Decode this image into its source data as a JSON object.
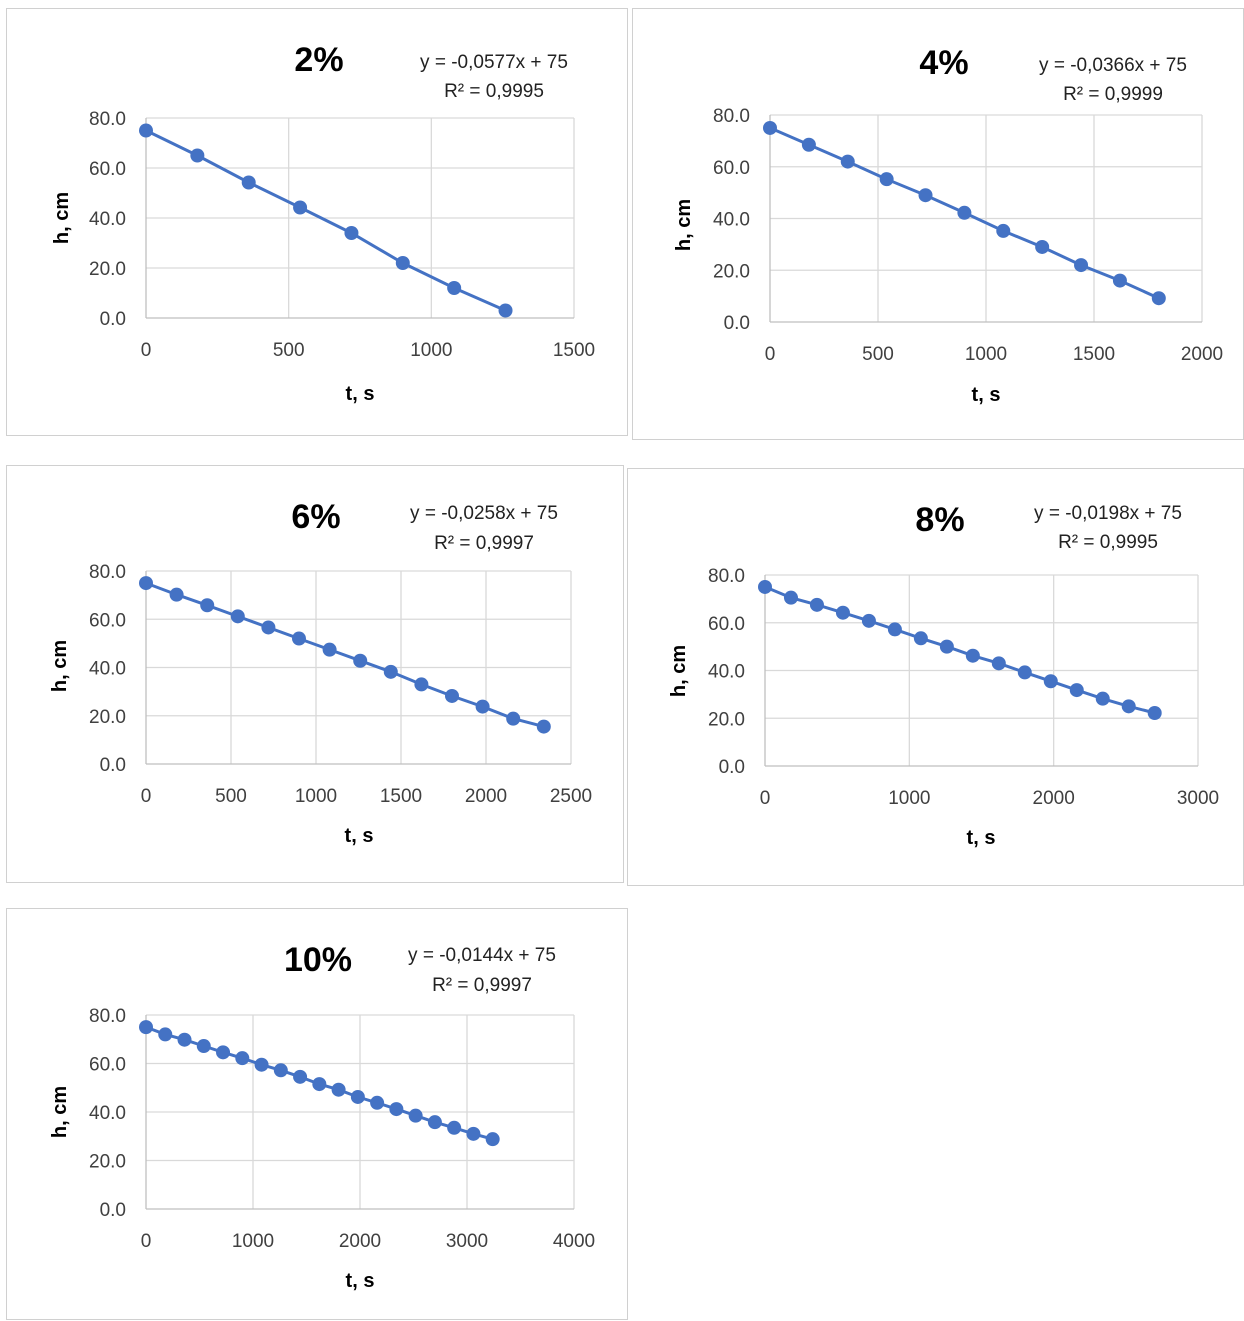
{
  "chart_data": [
    {
      "type": "scatter",
      "title": "2%",
      "equation": "y = -0,0577x + 75",
      "r2": "R² = 0,9995",
      "xlabel": "t, s",
      "ylabel": "h, cm",
      "xlim": [
        0,
        1500
      ],
      "ylim": [
        0,
        80
      ],
      "xticks": [
        "0",
        "500",
        "1000",
        "1500"
      ],
      "yticks": [
        "0.0",
        "20.0",
        "40.0",
        "60.0",
        "80.0"
      ],
      "series_color": "#4472c4",
      "x": [
        0,
        180,
        360,
        540,
        720,
        900,
        1080,
        1260
      ],
      "y": [
        75,
        65,
        54.2,
        44.2,
        34,
        22,
        12,
        3
      ]
    },
    {
      "type": "scatter",
      "title": "4%",
      "equation": "y = -0,0366x + 75",
      "r2": "R² = 0,9999",
      "xlabel": "t, s",
      "ylabel": "h, cm",
      "xlim": [
        0,
        2000
      ],
      "ylim": [
        0,
        80
      ],
      "xticks": [
        "0",
        "500",
        "1000",
        "1500",
        "2000"
      ],
      "yticks": [
        "0.0",
        "20.0",
        "40.0",
        "60.0",
        "80.0"
      ],
      "series_color": "#4472c4",
      "x": [
        0,
        180,
        360,
        540,
        720,
        900,
        1080,
        1260,
        1440,
        1620,
        1800
      ],
      "y": [
        75,
        68.5,
        62,
        55.2,
        49,
        42.2,
        35.2,
        29,
        22,
        16,
        9.2
      ]
    },
    {
      "type": "scatter",
      "title": "6%",
      "equation": "y = -0,0258x + 75",
      "r2": "R² = 0,9997",
      "xlabel": "t, s",
      "ylabel": "h, cm",
      "xlim": [
        0,
        2500
      ],
      "ylim": [
        0,
        80
      ],
      "xticks": [
        "0",
        "500",
        "1000",
        "1500",
        "2000",
        "2500"
      ],
      "yticks": [
        "0.0",
        "20.0",
        "40.0",
        "60.0",
        "80.0"
      ],
      "series_color": "#4472c4",
      "x": [
        0,
        180,
        360,
        540,
        720,
        900,
        1080,
        1260,
        1440,
        1620,
        1800,
        1980,
        2160,
        2340
      ],
      "y": [
        75,
        70.2,
        65.8,
        61.2,
        56.6,
        52,
        47.4,
        42.8,
        38.2,
        33,
        28.2,
        23.8,
        18.8,
        15.5
      ]
    },
    {
      "type": "scatter",
      "title": "8%",
      "equation": "y = -0,0198x + 75",
      "r2": "R² = 0,9995",
      "xlabel": "t, s",
      "ylabel": "h, cm",
      "xlim": [
        0,
        3000
      ],
      "ylim": [
        0,
        80
      ],
      "xticks": [
        "0",
        "1000",
        "2000",
        "3000"
      ],
      "yticks": [
        "0.0",
        "20.0",
        "40.0",
        "60.0",
        "80.0"
      ],
      "series_color": "#4472c4",
      "x": [
        0,
        180,
        360,
        540,
        720,
        900,
        1080,
        1260,
        1440,
        1620,
        1800,
        1980,
        2160,
        2340,
        2520,
        2700
      ],
      "y": [
        75,
        70.5,
        67.5,
        64.2,
        60.8,
        57.2,
        53.5,
        50,
        46.2,
        43,
        39.2,
        35.5,
        31.8,
        28.2,
        25,
        22.2
      ]
    },
    {
      "type": "scatter",
      "title": "10%",
      "equation": "y = -0,0144x + 75",
      "r2": "R² = 0,9997",
      "xlabel": "t, s",
      "ylabel": "h, cm",
      "xlim": [
        0,
        4000
      ],
      "ylim": [
        0,
        80
      ],
      "xticks": [
        "0",
        "1000",
        "2000",
        "3000",
        "4000"
      ],
      "yticks": [
        "0.0",
        "20.0",
        "40.0",
        "60.0",
        "80.0"
      ],
      "series_color": "#4472c4",
      "x": [
        0,
        180,
        360,
        540,
        720,
        900,
        1080,
        1260,
        1440,
        1620,
        1800,
        1980,
        2160,
        2340,
        2520,
        2700,
        2880,
        3060,
        3240
      ],
      "y": [
        75,
        72,
        69.8,
        67.2,
        64.6,
        62.2,
        59.5,
        57.2,
        54.5,
        51.5,
        49.2,
        46.2,
        43.8,
        41.2,
        38.5,
        35.8,
        33.5,
        31,
        28.8
      ]
    }
  ]
}
